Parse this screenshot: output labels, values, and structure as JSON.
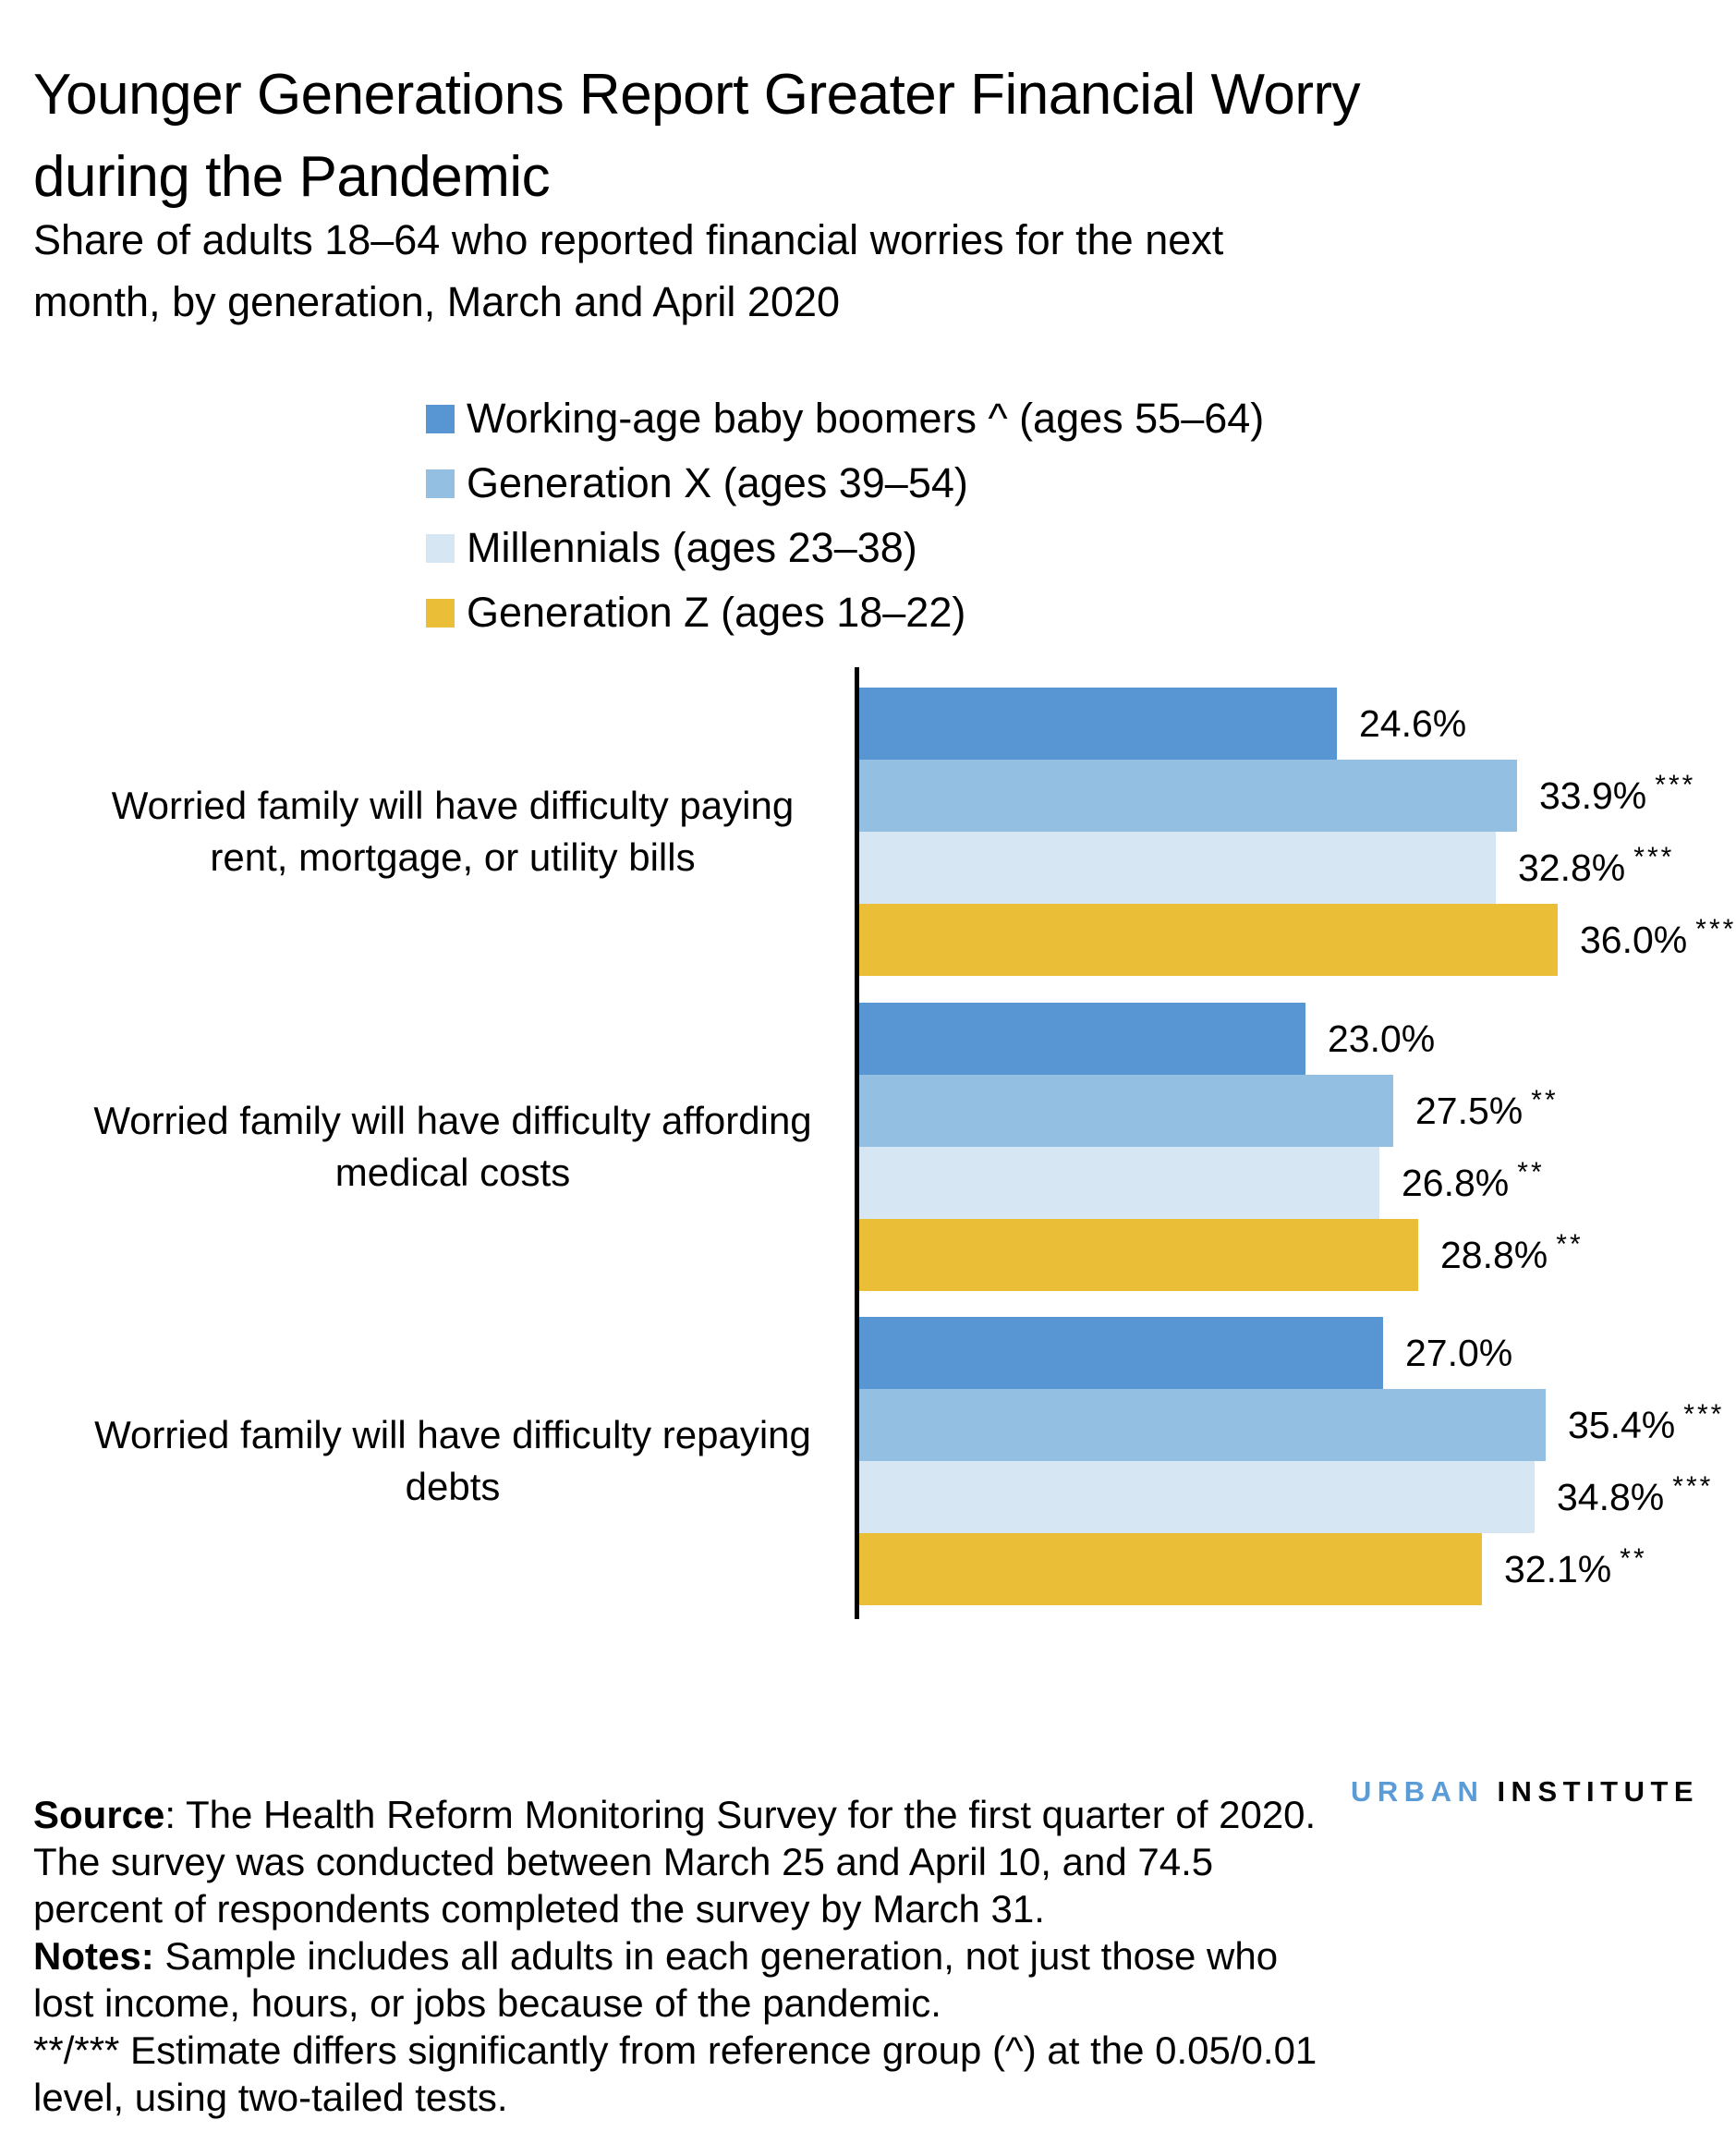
{
  "header": {
    "title": "Younger Generations Report Greater Financial Worry during the Pandemic",
    "title_lines": [
      "Younger Generations Report Greater Financial Worry",
      "during the Pandemic"
    ],
    "subtitle": "Share of adults 18–64 who reported financial worries for the next month, by generation, March and April 2020",
    "subtitle_lines": [
      "Share of adults 18–64 who reported financial worries for the next",
      "month, by generation, March and April 2020"
    ]
  },
  "legend": {
    "items": [
      {
        "label": "Working-age baby boomers ^ (ages 55–64)",
        "color": "#5795D3"
      },
      {
        "label": "Generation X (ages 39–54)",
        "color": "#92BFE2"
      },
      {
        "label": "Millennials (ages 23–38)",
        "color": "#D7E6F3"
      },
      {
        "label": "Generation Z (ages 18–22)",
        "color": "#EBBE37"
      }
    ]
  },
  "chart_data": {
    "type": "bar",
    "orientation": "horizontal",
    "title": "Younger Generations Report Greater Financial Worry during the Pandemic",
    "xlabel": "",
    "ylabel": "",
    "unit": "%",
    "xlim": [
      0,
      40
    ],
    "grid": false,
    "legend_position": "top",
    "categories": [
      "Worried family will have difficulty paying rent, mortgage, or utility bills",
      "Worried family will have difficulty affording medical costs",
      "Worried family will have difficulty repaying debts"
    ],
    "category_lines": [
      [
        "Worried family will have difficulty paying",
        "rent, mortgage, or utility bills"
      ],
      [
        "Worried family will have difficulty affording",
        "medical costs"
      ],
      [
        "Worried family will have difficulty repaying",
        "debts"
      ]
    ],
    "series": [
      {
        "name": "Working-age baby boomers ^ (ages 55–64)",
        "color": "#5795D3",
        "values": [
          24.6,
          23.0,
          27.0
        ],
        "labels": [
          "24.6%",
          "23.0%",
          "27.0%"
        ],
        "significance": [
          "",
          "",
          ""
        ]
      },
      {
        "name": "Generation X (ages 39–54)",
        "color": "#92BFE2",
        "values": [
          33.9,
          27.5,
          35.4
        ],
        "labels": [
          "33.9%",
          "27.5%",
          "35.4%"
        ],
        "significance": [
          "***",
          "**",
          "***"
        ]
      },
      {
        "name": "Millennials (ages 23–38)",
        "color": "#D7E6F3",
        "values": [
          32.8,
          26.8,
          34.8
        ],
        "labels": [
          "32.8%",
          "26.8%",
          "34.8%"
        ],
        "significance": [
          "***",
          "**",
          "***"
        ]
      },
      {
        "name": "Generation Z (ages 18–22)",
        "color": "#EBBE37",
        "values": [
          36.0,
          28.8,
          32.1
        ],
        "labels": [
          "36.0%",
          "28.8%",
          "32.1%"
        ],
        "significance": [
          "***",
          "**",
          "**"
        ]
      }
    ]
  },
  "notes": {
    "source": "Source: The Health Reform Monitoring Survey for the first quarter of 2020. The survey was conducted between March 25 and April 10, and 74.5 percent of respondents completed the survey by March 31.",
    "notes": "Notes: Sample includes all adults in each generation, not just those who lost income, hours, or jobs because of the pandemic.",
    "significance": "**/*** Estimate differs significantly from reference group (^) at the 0.05/0.01 level, using two-tailed tests.",
    "lines": [
      {
        "bold": "Source",
        "text": ": The Health Reform Monitoring Survey for the first quarter of 2020."
      },
      {
        "bold": "",
        "text": "The survey was conducted between March 25 and April 10, and 74.5"
      },
      {
        "bold": "",
        "text": "percent of respondents completed the survey by March 31."
      },
      {
        "bold": "Notes:",
        "text": " Sample includes all adults in each generation, not just those who"
      },
      {
        "bold": "",
        "text": "lost income, hours, or jobs because of the pandemic."
      },
      {
        "bold": "",
        "text": "**/*** Estimate differs significantly from reference group (^) at the 0.05/0.01"
      },
      {
        "bold": "",
        "text": "level, using two-tailed tests."
      }
    ]
  },
  "logo": {
    "word1": "URBAN",
    "word2": "INSTITUTE",
    "accent_color": "#5B9CD6"
  }
}
